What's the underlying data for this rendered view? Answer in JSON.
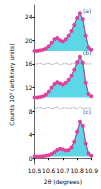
{
  "chart_data": {
    "type": "line",
    "x_label": "2θ (degrees)",
    "y_label": "Counts 10³ (arbitrary units)",
    "x": [
      10.5,
      10.52,
      10.54,
      10.56,
      10.58,
      10.6,
      10.62,
      10.64,
      10.66,
      10.68,
      10.7,
      10.72,
      10.74,
      10.76,
      10.78,
      10.8,
      10.82,
      10.84,
      10.86,
      10.88,
      10.9
    ],
    "xlim": [
      10.5,
      10.9
    ],
    "xticks": [
      10.5,
      10.6,
      10.7,
      10.8,
      10.9
    ],
    "ylim": [
      -1,
      26
    ],
    "yticks": [
      0,
      4,
      8,
      12,
      16,
      20,
      24
    ],
    "series": [
      {
        "type": "area",
        "color": "#40d0e0",
        "line_color": "#1f3fbf",
        "baseline": 18.2,
        "values": [
          18.2,
          18.2,
          18.3,
          18.4,
          18.6,
          19.0,
          19.5,
          20.1,
          20.3,
          20.0,
          19.8,
          20.2,
          20.8,
          21.6,
          22.7,
          23.8,
          24.5,
          23.5,
          20.9,
          18.9,
          18.4
        ]
      },
      {
        "type": "line",
        "color": "#e0409a",
        "marker": "circle",
        "values": [
          18.2,
          18.2,
          18.3,
          18.4,
          18.6,
          19.0,
          19.6,
          20.2,
          20.4,
          20.0,
          19.8,
          20.2,
          20.8,
          21.6,
          22.6,
          23.8,
          24.6,
          23.6,
          20.8,
          18.8,
          18.4
        ]
      },
      {
        "type": "line",
        "color": "#555555",
        "line_style": "dotted",
        "values": [
          16.0,
          16.0,
          16.1,
          15.9,
          16.0,
          16.1,
          15.9,
          16.0,
          16.2,
          15.8,
          16.0,
          16.1,
          15.9,
          16.0,
          16.1,
          15.8,
          16.2,
          15.9,
          16.0,
          16.0,
          16.0
        ]
      },
      {
        "type": "area",
        "color": "#40d0e0",
        "line_color": "#1f3fbf",
        "baseline": 10.3,
        "values": [
          10.3,
          10.3,
          10.4,
          10.5,
          10.8,
          11.3,
          11.9,
          12.5,
          12.9,
          12.7,
          12.5,
          12.8,
          13.3,
          14.0,
          15.1,
          16.2,
          17.1,
          16.3,
          12.9,
          10.9,
          10.5
        ]
      },
      {
        "type": "line",
        "color": "#e0409a",
        "marker": "circle",
        "values": [
          10.3,
          10.3,
          10.4,
          10.5,
          10.8,
          11.3,
          12.0,
          12.6,
          12.9,
          12.7,
          12.5,
          12.8,
          13.3,
          14.0,
          15.0,
          16.3,
          17.2,
          16.2,
          12.8,
          10.9,
          10.5
        ]
      },
      {
        "type": "line",
        "color": "#555555",
        "line_style": "dotted",
        "values": [
          8.5,
          8.5,
          8.6,
          8.4,
          8.5,
          8.6,
          8.4,
          8.5,
          8.7,
          8.3,
          8.5,
          8.6,
          8.4,
          8.5,
          8.6,
          8.3,
          8.7,
          8.4,
          8.5,
          8.5,
          8.5
        ]
      },
      {
        "type": "area",
        "color": "#40d0e0",
        "line_color": "#1f3fbf",
        "baseline": 0.3,
        "values": [
          0.3,
          0.3,
          0.3,
          0.35,
          0.4,
          0.5,
          0.7,
          1.0,
          1.35,
          1.6,
          1.5,
          1.3,
          1.4,
          1.8,
          2.9,
          4.4,
          6.1,
          5.6,
          2.6,
          0.8,
          0.4
        ]
      },
      {
        "type": "line",
        "color": "#e0409a",
        "marker": "circle",
        "values": [
          0.3,
          0.3,
          0.3,
          0.35,
          0.4,
          0.5,
          0.7,
          1.0,
          1.4,
          1.6,
          1.5,
          1.3,
          1.4,
          1.8,
          2.8,
          4.5,
          6.2,
          5.5,
          2.5,
          0.8,
          0.4
        ]
      }
    ],
    "annotations": [
      {
        "text": "(a)",
        "x": 10.87,
        "y": 25
      },
      {
        "text": "(b)",
        "x": 10.87,
        "y": 18
      },
      {
        "text": "(c)",
        "x": 10.87,
        "y": 8
      }
    ]
  }
}
